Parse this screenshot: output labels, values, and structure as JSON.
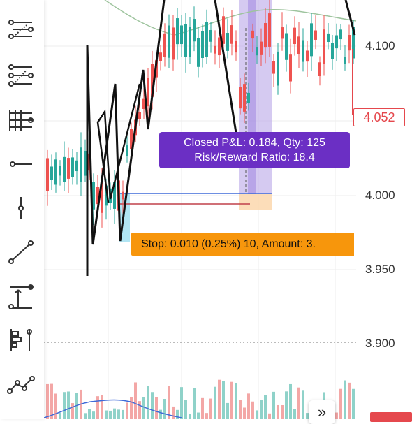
{
  "price_axis": {
    "labels": [
      "4.100",
      "4.000",
      "3.950",
      "3.900"
    ],
    "current_price": "4.052"
  },
  "overlays": {
    "pnl_line1": "Closed P&L: 0.184, Qty: 125",
    "pnl_line2": "Risk/Reward Ratio: 18.4",
    "stop_text": "Stop: 0.010 (0.25%) 10, Amount: 3."
  },
  "scroll_button": {
    "glyph": "»"
  },
  "toolbar": [
    {
      "name": "pitchfork-tool-icon"
    },
    {
      "name": "fib-retracement-tool-icon"
    },
    {
      "name": "horizontal-lines-tool-icon"
    },
    {
      "name": "horizontal-ray-tool-icon"
    },
    {
      "name": "vertical-line-tool-icon"
    },
    {
      "name": "trend-line-tool-icon"
    },
    {
      "name": "long-position-tool-icon"
    },
    {
      "name": "volume-profile-tool-icon"
    },
    {
      "name": "pattern-tool-icon"
    }
  ],
  "colors": {
    "up": "#26a69a",
    "down": "#ef5350",
    "pnl_box": "#6b2fc4",
    "stop_box": "#f7960c",
    "current_price": "#e5484d"
  }
}
